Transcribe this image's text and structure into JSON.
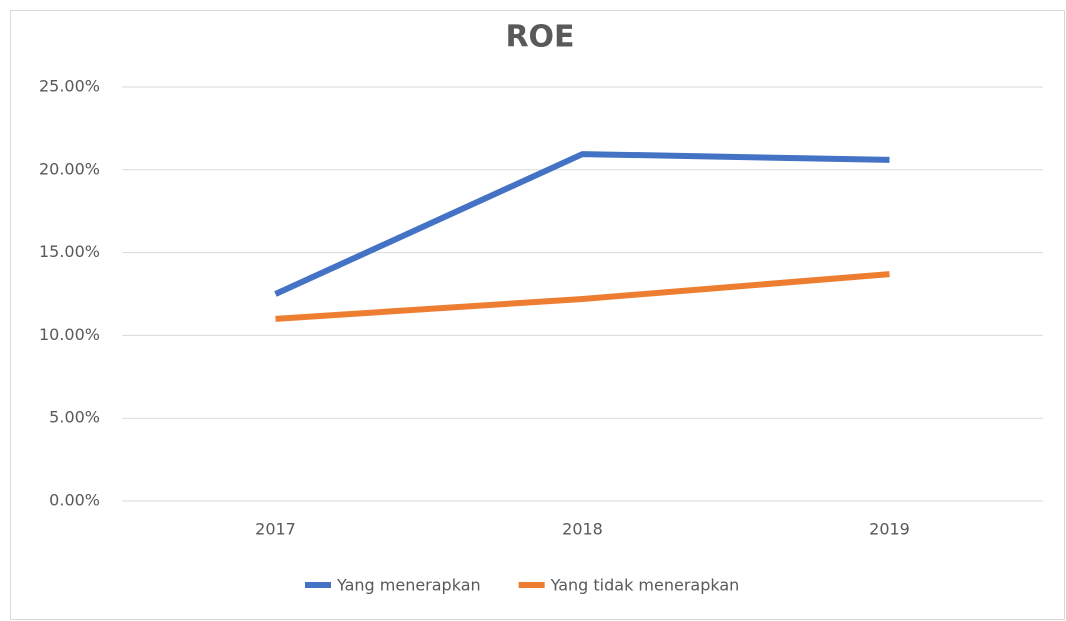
{
  "chart_data": {
    "type": "line",
    "title": "ROE",
    "categories": [
      "2017",
      "2018",
      "2019"
    ],
    "series": [
      {
        "name": "Yang menerapkan",
        "color": "#4472c4",
        "values": [
          12.5,
          20.95,
          20.6
        ]
      },
      {
        "name": "Yang tidak menerapkan",
        "color": "#ed7d31",
        "values": [
          11.0,
          12.2,
          13.7
        ]
      }
    ],
    "ylim": [
      0,
      25
    ],
    "yticks": [
      {
        "value": 0,
        "label": "0.00%"
      },
      {
        "value": 5,
        "label": "5.00%"
      },
      {
        "value": 10,
        "label": "10.00%"
      },
      {
        "value": 15,
        "label": "15.00%"
      },
      {
        "value": 20,
        "label": "20.00%"
      },
      {
        "value": 25,
        "label": "25.00%"
      }
    ],
    "grid": true,
    "legend": "bottom"
  }
}
